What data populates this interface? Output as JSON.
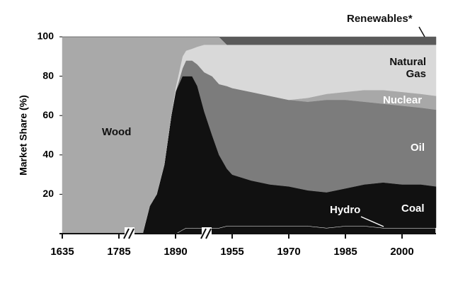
{
  "chart_data": {
    "type": "stacked-area",
    "y_label": "Market Share (%)",
    "x": [
      1635,
      1785,
      1822,
      1829,
      1842,
      1855,
      1869,
      1882,
      1890,
      1898,
      1902,
      1909,
      1915,
      1923,
      1932,
      1940,
      1949,
      1955,
      1960,
      1965,
      1970,
      1975,
      1980,
      1985,
      1990,
      1995,
      2000,
      2005,
      2009
    ],
    "xlim": [
      1635,
      2009
    ],
    "xticks": [
      1635,
      1785,
      1890,
      1955,
      1970,
      1985,
      2000
    ],
    "ylim": [
      0,
      100
    ],
    "yticks": [
      20,
      40,
      60,
      80,
      100
    ],
    "series": [
      {
        "name": "Hydro",
        "color": "#111111",
        "values": [
          0,
          0,
          0,
          0,
          0,
          0,
          0,
          0,
          0,
          2,
          3,
          3,
          3,
          3,
          3,
          3,
          4,
          4,
          4,
          4,
          4,
          4,
          3,
          4,
          4,
          3,
          3,
          3,
          3
        ]
      },
      {
        "name": "Coal",
        "color": "#111111",
        "values": [
          0,
          0,
          0,
          0,
          14,
          20,
          35,
          60,
          72,
          78,
          77,
          77,
          72,
          59,
          47,
          37,
          29,
          26,
          23,
          21,
          20,
          18,
          18,
          19,
          21,
          23,
          22,
          22,
          21
        ]
      },
      {
        "name": "Oil",
        "color": "#7c7c7c",
        "values": [
          0,
          0,
          0,
          0,
          0,
          0,
          0,
          0,
          0,
          4,
          8,
          8,
          11,
          20,
          30,
          36,
          42,
          44,
          45,
          45,
          44,
          45,
          47,
          45,
          42,
          40,
          40,
          39,
          39
        ]
      },
      {
        "name": "Nuclear",
        "color": "#a8a8a8",
        "values": [
          0,
          0,
          0,
          0,
          0,
          0,
          0,
          0,
          0,
          0,
          0,
          0,
          0,
          0,
          0,
          0,
          0,
          0,
          0,
          0,
          0,
          2,
          3,
          4,
          6,
          7,
          7,
          7,
          7
        ]
      },
      {
        "name": "Natural Gas",
        "color": "#d9d9d9",
        "values": [
          0,
          0,
          0,
          0,
          0,
          0,
          0,
          0,
          2,
          6,
          5,
          6,
          9,
          14,
          16,
          20,
          21,
          22,
          24,
          26,
          28,
          27,
          25,
          24,
          23,
          23,
          24,
          25,
          26
        ]
      },
      {
        "name": "Wood",
        "color": "#a9a9a9",
        "values": [
          100,
          100,
          100,
          100,
          86,
          80,
          65,
          40,
          26,
          10,
          7,
          6,
          5,
          4,
          4,
          4,
          0,
          0,
          0,
          0,
          0,
          0,
          0,
          0,
          0,
          0,
          0,
          0,
          0
        ]
      },
      {
        "name": "Renewables*",
        "color": "#5a5a5a",
        "values": [
          0,
          0,
          0,
          0,
          0,
          0,
          0,
          0,
          0,
          0,
          0,
          0,
          0,
          0,
          0,
          0,
          4,
          4,
          4,
          4,
          4,
          4,
          4,
          4,
          4,
          4,
          4,
          4,
          4
        ]
      }
    ]
  }
}
